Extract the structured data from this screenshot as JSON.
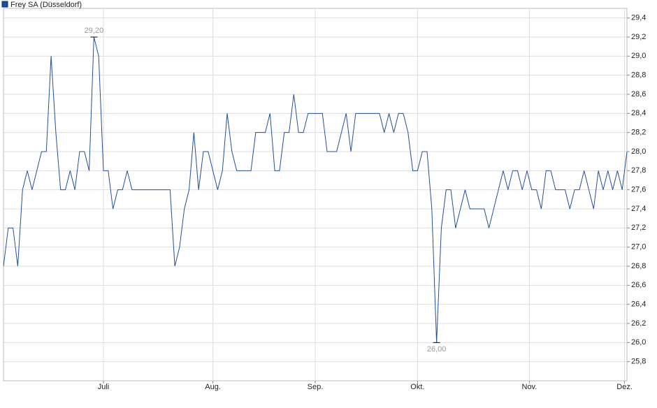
{
  "chart_data": {
    "type": "line",
    "x": [
      0,
      1,
      2,
      3,
      4,
      5,
      6,
      7,
      8,
      9,
      10,
      11,
      12,
      13,
      14,
      15,
      16,
      17,
      18,
      19,
      20,
      21,
      22,
      23,
      24,
      25,
      26,
      27,
      28,
      29,
      30,
      31,
      32,
      33,
      34,
      35,
      36,
      37,
      38,
      39,
      40,
      41,
      42,
      43,
      44,
      45,
      46,
      47,
      48,
      49,
      50,
      51,
      52,
      53,
      54,
      55,
      56,
      57,
      58,
      59,
      60,
      61,
      62,
      63,
      64,
      65,
      66,
      67,
      68,
      69,
      70,
      71,
      72,
      73,
      74,
      75,
      76,
      77,
      78,
      79,
      80,
      81,
      82,
      83,
      84,
      85,
      86,
      87,
      88,
      89,
      90,
      91,
      92,
      93,
      94,
      95,
      96,
      97,
      98,
      99,
      100,
      101,
      102,
      103,
      104,
      105,
      106,
      107,
      108,
      109,
      110,
      111,
      112,
      113,
      114,
      115,
      116,
      117,
      118,
      119,
      120,
      121,
      122,
      123,
      124,
      125,
      126,
      127,
      128,
      129,
      130,
      131
    ],
    "series": [
      {
        "name": "Frey SA (Düsseldorf)",
        "color": "#1f4f9c",
        "values": [
          26.8,
          27.2,
          27.2,
          26.8,
          27.6,
          27.8,
          27.6,
          27.8,
          28.0,
          28.0,
          29.0,
          28.2,
          27.6,
          27.6,
          27.8,
          27.6,
          28.0,
          28.0,
          27.8,
          29.2,
          29.0,
          27.8,
          27.8,
          27.4,
          27.6,
          27.6,
          27.8,
          27.6,
          27.6,
          27.6,
          27.6,
          27.6,
          27.6,
          27.6,
          27.6,
          27.6,
          26.8,
          27.0,
          27.4,
          27.6,
          28.2,
          27.6,
          28.0,
          28.0,
          27.8,
          27.6,
          27.8,
          28.4,
          28.0,
          27.8,
          27.8,
          27.8,
          27.8,
          28.2,
          28.2,
          28.2,
          28.4,
          27.8,
          27.8,
          28.2,
          28.2,
          28.6,
          28.2,
          28.2,
          28.4,
          28.4,
          28.4,
          28.4,
          28.0,
          28.0,
          28.0,
          28.2,
          28.4,
          28.0,
          28.4,
          28.4,
          28.4,
          28.4,
          28.4,
          28.4,
          28.2,
          28.4,
          28.2,
          28.4,
          28.4,
          28.2,
          27.8,
          27.8,
          28.0,
          28.0,
          27.4,
          26.0,
          27.2,
          27.6,
          27.6,
          27.2,
          27.4,
          27.6,
          27.4,
          27.4,
          27.4,
          27.4,
          27.2,
          27.4,
          27.6,
          27.8,
          27.6,
          27.8,
          27.8,
          27.6,
          27.8,
          27.6,
          27.6,
          27.4,
          27.8,
          27.8,
          27.6,
          27.6,
          27.6,
          27.4,
          27.6,
          27.6,
          27.8,
          27.6,
          27.4,
          27.8,
          27.6,
          27.8,
          27.6,
          27.8,
          27.6,
          28.0
        ]
      }
    ],
    "xlim": [
      0,
      131
    ],
    "xticks": [
      {
        "value": 21,
        "label": "Juli"
      },
      {
        "value": 44,
        "label": "Aug."
      },
      {
        "value": 65.5,
        "label": "Sep."
      },
      {
        "value": 87,
        "label": "Okt."
      },
      {
        "value": 110.5,
        "label": "Nov."
      },
      {
        "value": 130.5,
        "label": "Dez."
      }
    ],
    "ylim": [
      25.6,
      29.5
    ],
    "yticks": [
      {
        "value": 25.8,
        "label": "25,8"
      },
      {
        "value": 26.0,
        "label": "26,0"
      },
      {
        "value": 26.2,
        "label": "26,2"
      },
      {
        "value": 26.4,
        "label": "26,4"
      },
      {
        "value": 26.6,
        "label": "26,6"
      },
      {
        "value": 26.8,
        "label": "26,8"
      },
      {
        "value": 27.0,
        "label": "27,0"
      },
      {
        "value": 27.2,
        "label": "27,2"
      },
      {
        "value": 27.4,
        "label": "27,4"
      },
      {
        "value": 27.6,
        "label": "27,6"
      },
      {
        "value": 27.8,
        "label": "27,8"
      },
      {
        "value": 28.0,
        "label": "28,0"
      },
      {
        "value": 28.2,
        "label": "28,2"
      },
      {
        "value": 28.4,
        "label": "28,4"
      },
      {
        "value": 28.6,
        "label": "28,6"
      },
      {
        "value": 28.8,
        "label": "28,8"
      },
      {
        "value": 29.0,
        "label": "29,0"
      },
      {
        "value": 29.2,
        "label": "29,2"
      },
      {
        "value": 29.4,
        "label": "29,4"
      }
    ],
    "grid": true,
    "legend": "top-left",
    "annotations": [
      {
        "x": 19,
        "y": 29.2,
        "label": "29,20"
      },
      {
        "x": 91,
        "y": 26.0,
        "label": "26,00"
      }
    ]
  }
}
